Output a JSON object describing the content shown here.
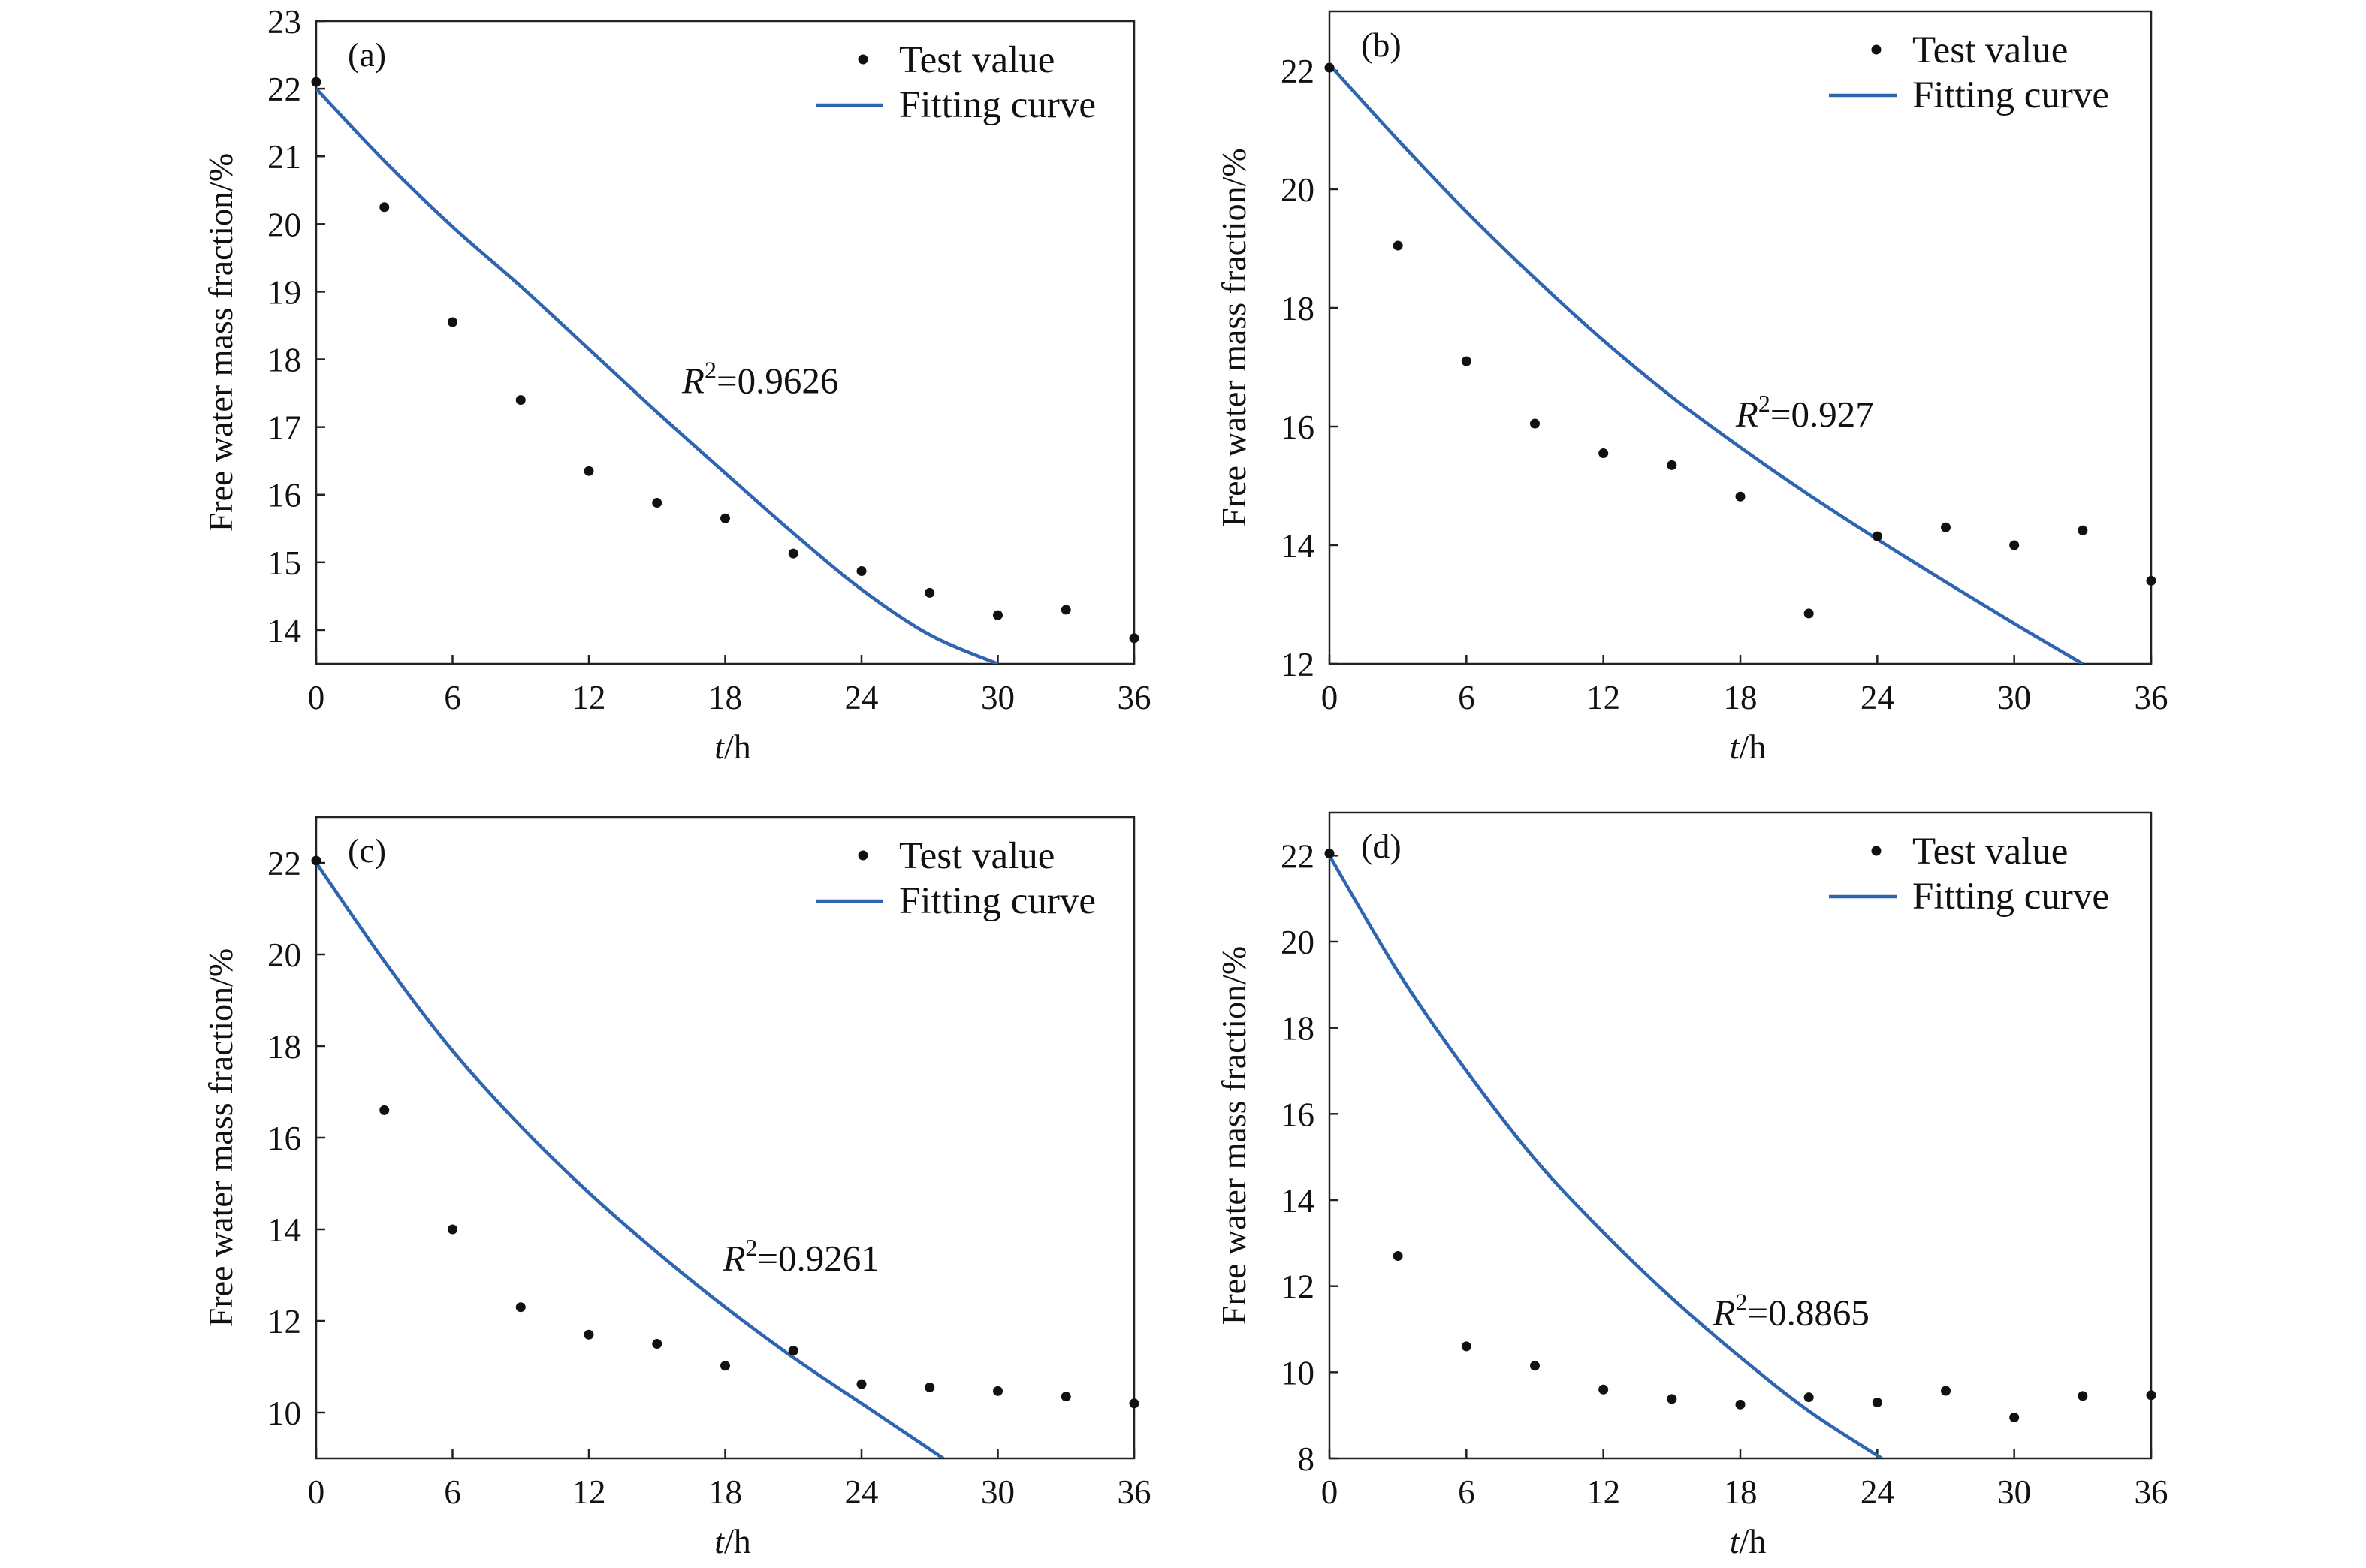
{
  "figure": {
    "legend": {
      "test_value": "Test value",
      "fitting_curve": "Fitting curve"
    },
    "colors": {
      "points": "#111111",
      "curve": "#2e64b0",
      "axes": "#222222",
      "background": "#ffffff"
    }
  },
  "chart_data": [
    {
      "type": "scatter",
      "panel_label": "(a)",
      "xlabel_var": "t",
      "xlabel_unit": "/h",
      "ylabel": "Free water mass fraction/%",
      "xlim": [
        0,
        36
      ],
      "ylim": [
        13.5,
        23
      ],
      "xticks": [
        0,
        6,
        12,
        18,
        24,
        30,
        36
      ],
      "yticks": [
        14,
        15,
        16,
        17,
        18,
        19,
        20,
        21,
        22,
        23
      ],
      "series": [
        {
          "name": "Test value",
          "kind": "scatter",
          "x": [
            0,
            3,
            6,
            9,
            12,
            15,
            18,
            21,
            24,
            27,
            30,
            33,
            36
          ],
          "y": [
            22.1,
            20.25,
            18.55,
            17.4,
            16.35,
            15.88,
            15.65,
            15.13,
            14.87,
            14.55,
            14.22,
            14.3,
            13.88
          ]
        },
        {
          "name": "Fitting curve",
          "kind": "line",
          "x": [
            0,
            3,
            6,
            9,
            12,
            15,
            18,
            21,
            24,
            27,
            30
          ],
          "y": [
            22.0,
            20.93,
            19.96,
            19.08,
            18.15,
            17.22,
            16.32,
            15.43,
            14.6,
            13.93,
            13.5
          ]
        }
      ],
      "annotation": {
        "r2_var": "R",
        "r2_sup": "2",
        "r2_value": "=0.9626",
        "x": 16.1,
        "y": 17.5
      }
    },
    {
      "type": "scatter",
      "panel_label": "(b)",
      "xlabel_var": "t",
      "xlabel_unit": "/h",
      "ylabel": "Free water mass fraction/%",
      "xlim": [
        0,
        36
      ],
      "ylim": [
        12,
        23
      ],
      "xticks": [
        0,
        6,
        12,
        18,
        24,
        30,
        36
      ],
      "yticks": [
        12,
        14,
        16,
        18,
        20,
        22
      ],
      "series": [
        {
          "name": "Test value",
          "kind": "scatter",
          "x": [
            0,
            3,
            6,
            9,
            12,
            15,
            18,
            21,
            24,
            27,
            30,
            33,
            36
          ],
          "y": [
            22.05,
            19.05,
            17.1,
            16.05,
            15.55,
            15.35,
            14.82,
            12.85,
            14.15,
            14.3,
            14.0,
            14.25,
            13.4
          ]
        },
        {
          "name": "Fitting curve",
          "kind": "line",
          "x": [
            0,
            3,
            6,
            9,
            12,
            15,
            18,
            21,
            24,
            27,
            30,
            33
          ],
          "y": [
            22.1,
            20.83,
            19.62,
            18.5,
            17.45,
            16.5,
            15.65,
            14.85,
            14.1,
            13.38,
            12.68,
            12.0
          ]
        }
      ],
      "annotation": {
        "r2_var": "R",
        "r2_sup": "2",
        "r2_value": "=0.927",
        "x": 17.8,
        "y": 16.0
      }
    },
    {
      "type": "scatter",
      "panel_label": "(c)",
      "xlabel_var": "t",
      "xlabel_unit": "/h",
      "ylabel": "Free water mass fraction/%",
      "xlim": [
        0,
        36
      ],
      "ylim": [
        9,
        23
      ],
      "xticks": [
        0,
        6,
        12,
        18,
        24,
        30,
        36
      ],
      "yticks": [
        10,
        12,
        14,
        16,
        18,
        20,
        22
      ],
      "series": [
        {
          "name": "Test value",
          "kind": "scatter",
          "x": [
            0,
            3,
            6,
            9,
            12,
            15,
            18,
            21,
            24,
            27,
            30,
            33,
            36
          ],
          "y": [
            22.05,
            16.6,
            14.0,
            12.3,
            11.7,
            11.5,
            11.02,
            11.35,
            10.62,
            10.55,
            10.47,
            10.35,
            10.2
          ]
        },
        {
          "name": "Fitting curve",
          "kind": "line",
          "x": [
            0,
            3,
            6,
            9,
            12,
            15,
            18,
            21,
            24,
            27,
            27.6
          ],
          "y": [
            22.0,
            19.85,
            17.9,
            16.25,
            14.8,
            13.5,
            12.3,
            11.2,
            10.2,
            9.2,
            9.0
          ]
        }
      ],
      "annotation": {
        "r2_var": "R",
        "r2_sup": "2",
        "r2_value": "=0.9261",
        "x": 17.9,
        "y": 13.1
      }
    },
    {
      "type": "scatter",
      "panel_label": "(d)",
      "xlabel_var": "t",
      "xlabel_unit": "/h",
      "ylabel": "Free water mass fraction/%",
      "xlim": [
        0,
        36
      ],
      "ylim": [
        8,
        23
      ],
      "xticks": [
        0,
        6,
        12,
        18,
        24,
        30,
        36
      ],
      "yticks": [
        8,
        10,
        12,
        14,
        16,
        18,
        20,
        22
      ],
      "series": [
        {
          "name": "Test value",
          "kind": "scatter",
          "x": [
            0,
            3,
            6,
            9,
            12,
            15,
            18,
            21,
            24,
            27,
            30,
            33,
            36
          ],
          "y": [
            22.05,
            12.7,
            10.6,
            10.15,
            9.6,
            9.38,
            9.25,
            9.42,
            9.3,
            9.57,
            8.95,
            9.45,
            9.47
          ]
        },
        {
          "name": "Fitting curve",
          "kind": "line",
          "x": [
            0,
            3,
            6,
            9,
            12,
            15,
            18,
            21,
            24.2
          ],
          "y": [
            22.0,
            19.3,
            17.0,
            14.95,
            13.25,
            11.72,
            10.35,
            9.1,
            8.0
          ]
        }
      ],
      "annotation": {
        "r2_var": "R",
        "r2_sup": "2",
        "r2_value": "=0.8865",
        "x": 16.8,
        "y": 11.1
      }
    }
  ]
}
